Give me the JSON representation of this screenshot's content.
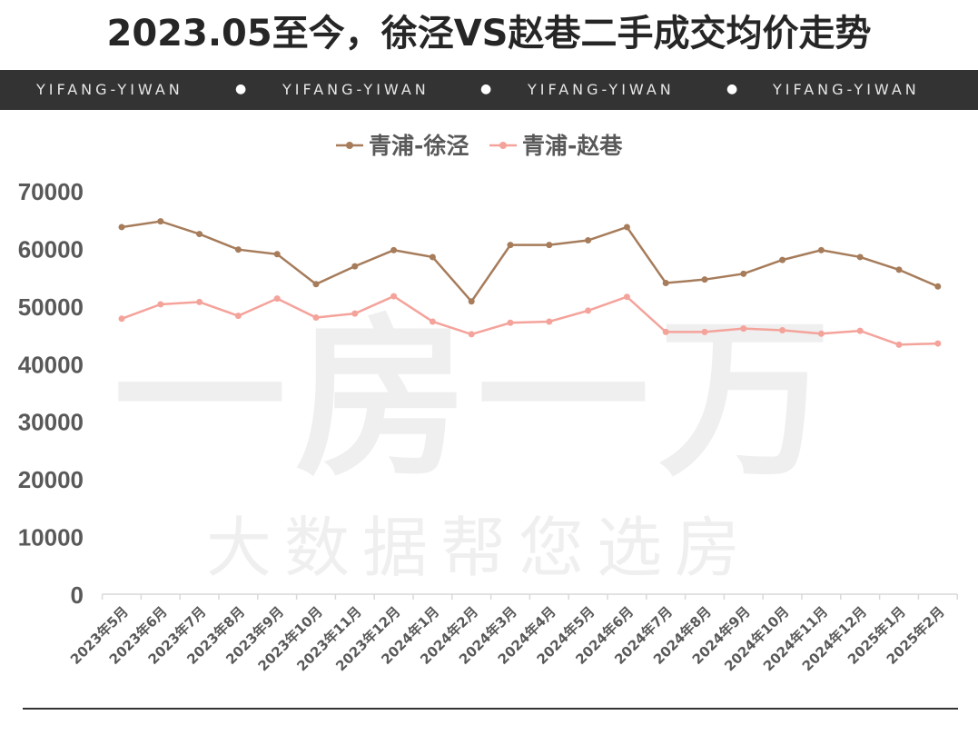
{
  "title": "2023.05至今，徐泾VS赵巷二手成交均价走势",
  "banner": {
    "items": [
      "YIFANG-YIWAN",
      "YIFANG-YIWAN",
      "YIFANG-YIWAN",
      "YIFANG-YIWAN"
    ],
    "separator": "●"
  },
  "watermark": {
    "line1": "一房一万",
    "line2": "大数据帮您选房"
  },
  "chart_data": {
    "type": "line",
    "title": "",
    "xlabel": "",
    "ylabel": "",
    "ylim": [
      0,
      70000
    ],
    "yticks": [
      0,
      10000,
      20000,
      30000,
      40000,
      50000,
      60000,
      70000
    ],
    "grid": false,
    "legend_position": "top-center",
    "categories": [
      "2023年5月",
      "2023年6月",
      "2023年7月",
      "2023年8月",
      "2023年9月",
      "2023年10月",
      "2023年11月",
      "2023年12月",
      "2024年1月",
      "2024年2月",
      "2024年3月",
      "2024年4月",
      "2024年5月",
      "2024年6月",
      "2024年7月",
      "2024年8月",
      "2024年9月",
      "2024年10月",
      "2024年11月",
      "2024年12月",
      "2025年1月",
      "2025年2月"
    ],
    "series": [
      {
        "name": "青浦-徐泾",
        "color": "#a67c5b",
        "values": [
          63700,
          64700,
          62500,
          59800,
          59000,
          53800,
          56900,
          59700,
          58500,
          50800,
          60600,
          60600,
          61400,
          63700,
          54000,
          54600,
          55600,
          58000,
          59700,
          58500,
          56300,
          53400
        ]
      },
      {
        "name": "青浦-赵巷",
        "color": "#f4a39b",
        "values": [
          47800,
          50300,
          50700,
          48300,
          51300,
          48000,
          48700,
          51700,
          47300,
          45100,
          47100,
          47300,
          49200,
          51600,
          45500,
          45500,
          46100,
          45800,
          45200,
          45700,
          43300,
          43500
        ]
      }
    ]
  }
}
